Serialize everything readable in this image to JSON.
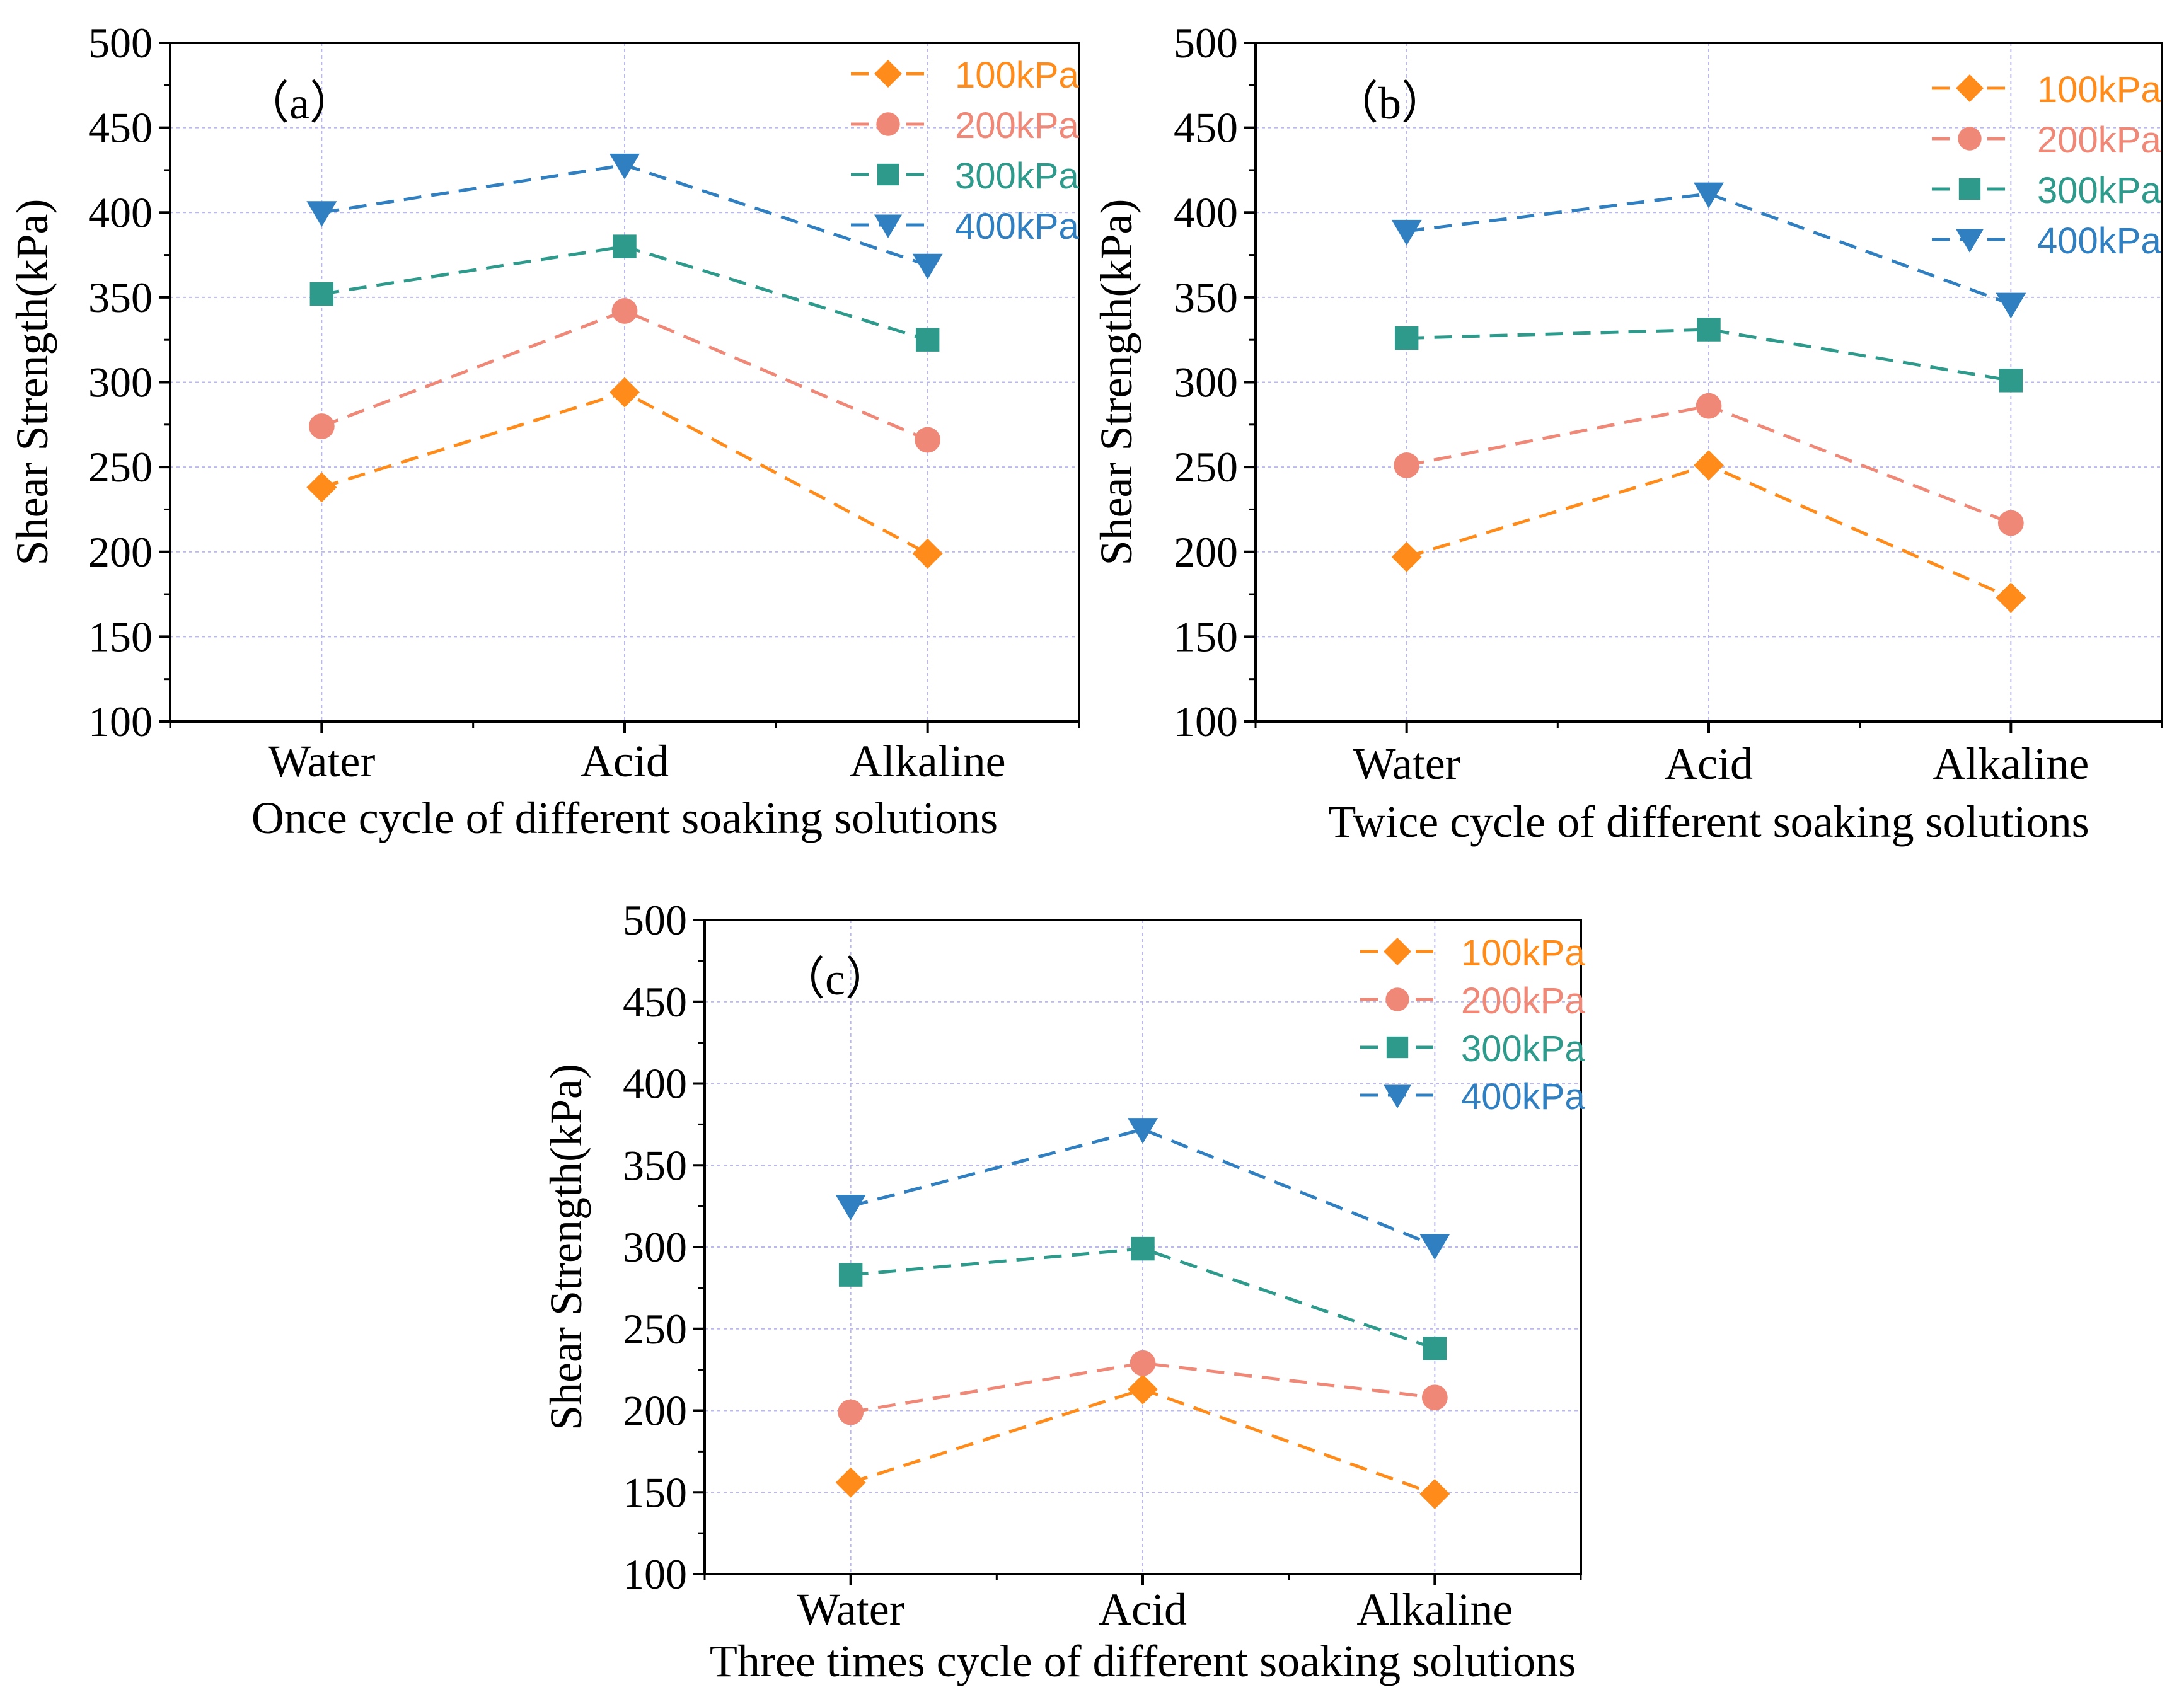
{
  "figure": {
    "name": "shear-strength-figure"
  },
  "chart_data": [
    {
      "type": "line",
      "panel_label": "（a）",
      "title": "",
      "categories": [
        "Water",
        "Acid",
        "Alkaline"
      ],
      "xlabel": "Once cycle of different soaking solutions",
      "ylabel": "Shear Strength(kPa)",
      "ylim": [
        100,
        500
      ],
      "yticks": [
        100,
        150,
        200,
        250,
        300,
        350,
        400,
        450,
        500
      ],
      "grid": true,
      "legend_position": "top-right",
      "series": [
        {
          "name": "100kPa",
          "color": "#ff8c1a",
          "marker": "diamond",
          "values": [
            238,
            294,
            199
          ]
        },
        {
          "name": "200kPa",
          "color": "#f08878",
          "marker": "circle",
          "values": [
            274,
            342,
            266
          ]
        },
        {
          "name": "300kPa",
          "color": "#2e9a8c",
          "marker": "square",
          "values": [
            352,
            380,
            325
          ]
        },
        {
          "name": "400kPa",
          "color": "#2f7fc1",
          "marker": "triangle-down",
          "values": [
            400,
            428,
            369
          ]
        }
      ]
    },
    {
      "type": "line",
      "panel_label": "（b）",
      "title": "",
      "categories": [
        "Water",
        "Acid",
        "Alkaline"
      ],
      "xlabel": "Twice cycle of different soaking solutions",
      "ylabel": "Shear Strength(kPa)",
      "ylim": [
        100,
        500
      ],
      "yticks": [
        100,
        150,
        200,
        250,
        300,
        350,
        400,
        450,
        500
      ],
      "grid": true,
      "legend_position": "top-right",
      "series": [
        {
          "name": "100kPa",
          "color": "#ff8c1a",
          "marker": "diamond",
          "values": [
            197,
            251,
            173
          ]
        },
        {
          "name": "200kPa",
          "color": "#f08878",
          "marker": "circle",
          "values": [
            251,
            286,
            217
          ]
        },
        {
          "name": "300kPa",
          "color": "#2e9a8c",
          "marker": "square",
          "values": [
            326,
            331,
            301
          ]
        },
        {
          "name": "400kPa",
          "color": "#2f7fc1",
          "marker": "triangle-down",
          "values": [
            389,
            411,
            346
          ]
        }
      ]
    },
    {
      "type": "line",
      "panel_label": "（c）",
      "title": "",
      "categories": [
        "Water",
        "Acid",
        "Alkaline"
      ],
      "xlabel": "Three times cycle of different soaking solutions",
      "ylabel": "Shear Strength(kPa)",
      "ylim": [
        100,
        500
      ],
      "yticks": [
        100,
        150,
        200,
        250,
        300,
        350,
        400,
        450,
        500
      ],
      "grid": true,
      "legend_position": "top-right",
      "series": [
        {
          "name": "100kPa",
          "color": "#ff8c1a",
          "marker": "diamond",
          "values": [
            156,
            213,
            149
          ]
        },
        {
          "name": "200kPa",
          "color": "#f08878",
          "marker": "circle",
          "values": [
            199,
            229,
            208
          ]
        },
        {
          "name": "300kPa",
          "color": "#2e9a8c",
          "marker": "square",
          "values": [
            283,
            299,
            238
          ]
        },
        {
          "name": "400kPa",
          "color": "#2f7fc1",
          "marker": "triangle-down",
          "values": [
            325,
            372,
            301
          ]
        }
      ]
    }
  ]
}
